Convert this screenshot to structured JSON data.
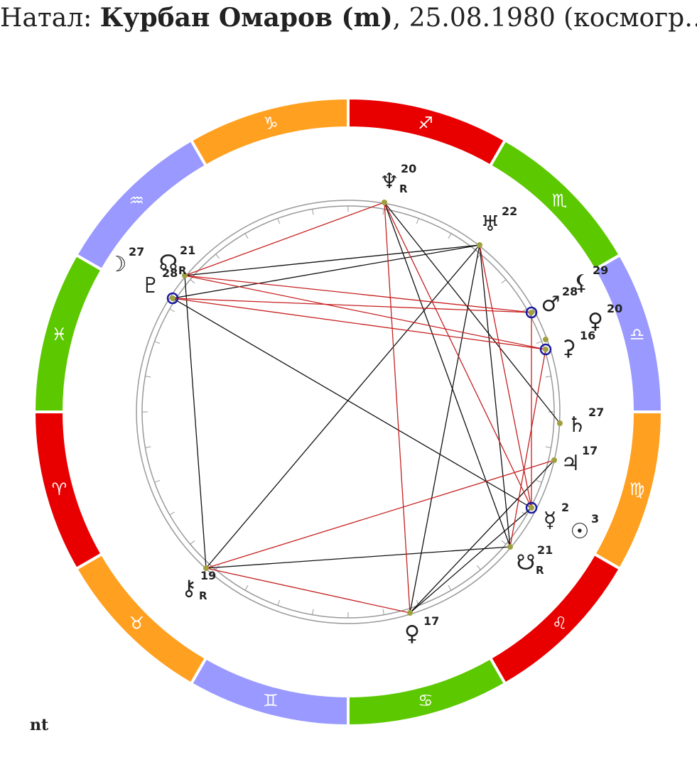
{
  "header": {
    "prefix": "Натал: ",
    "name": "Курбан Омаров (m)",
    "suffix": ", 25.08.1980 (космогр…"
  },
  "signs": [
    "♐",
    "♏",
    "♎",
    "♍",
    "♌",
    "♋",
    "♊",
    "♉",
    "♈",
    "♓",
    "♒",
    "♑"
  ],
  "points": [
    {
      "glyph": "♆",
      "degree": 20,
      "retro": "R"
    },
    {
      "glyph": "♅",
      "degree": 22
    },
    {
      "glyph": "☊",
      "degree": 21,
      "retro": "R"
    },
    {
      "glyph": "♇",
      "degree": 28
    },
    {
      "glyph": "☽",
      "degree": 27
    },
    {
      "glyph": "♂",
      "degree": 28
    },
    {
      "glyph": "⚸",
      "degree": 29
    },
    {
      "glyph": "♀",
      "degree": 20
    },
    {
      "glyph": "⚳",
      "degree": 16
    },
    {
      "glyph": "♄",
      "degree": 27
    },
    {
      "glyph": "♃",
      "degree": 17
    },
    {
      "glyph": "☿",
      "degree": 2
    },
    {
      "glyph": "☉",
      "degree": 3
    },
    {
      "glyph": "☋",
      "degree": 21,
      "retro": "R"
    },
    {
      "glyph": "♀",
      "degree": 17
    },
    {
      "glyph": "⚷",
      "degree": 19,
      "retro": "R"
    }
  ],
  "footer": "nt"
}
